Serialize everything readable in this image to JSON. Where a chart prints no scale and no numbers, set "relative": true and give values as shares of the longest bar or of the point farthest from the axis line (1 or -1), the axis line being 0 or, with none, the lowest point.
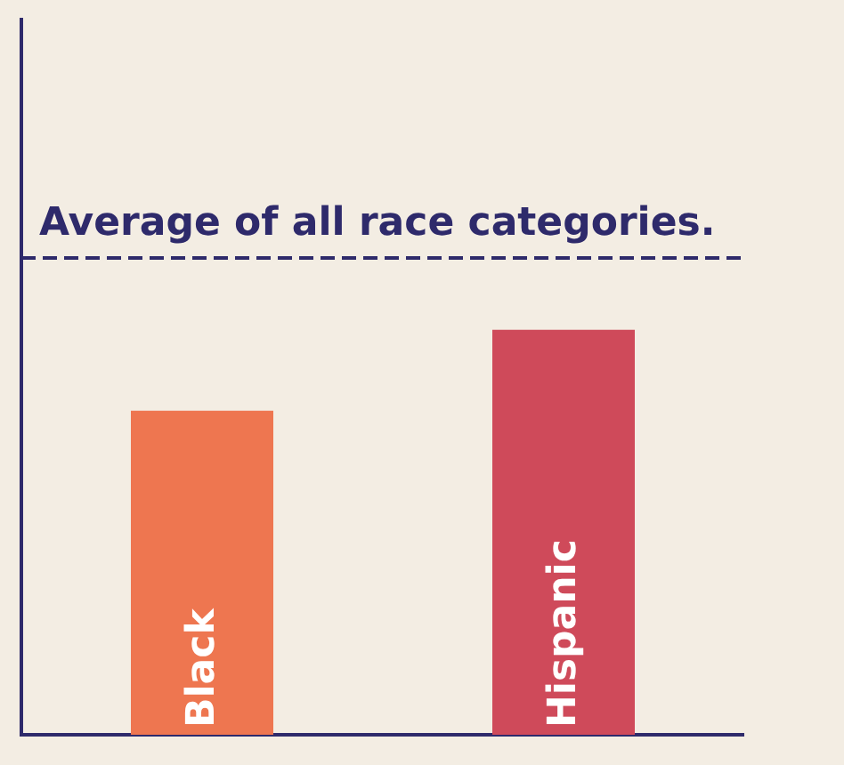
{
  "chart_data": {
    "type": "bar",
    "relative": true,
    "categories": [
      "Black",
      "Hispanic"
    ],
    "values": [
      0.8,
      1
    ],
    "colors": [
      "#ee7650",
      "#cf4a5a"
    ],
    "ref_lines": [
      {
        "axis": "y",
        "value": 1.18,
        "label": "Average of all race categories.",
        "color": "#2e2a6b",
        "line_style": "dashed"
      }
    ]
  }
}
